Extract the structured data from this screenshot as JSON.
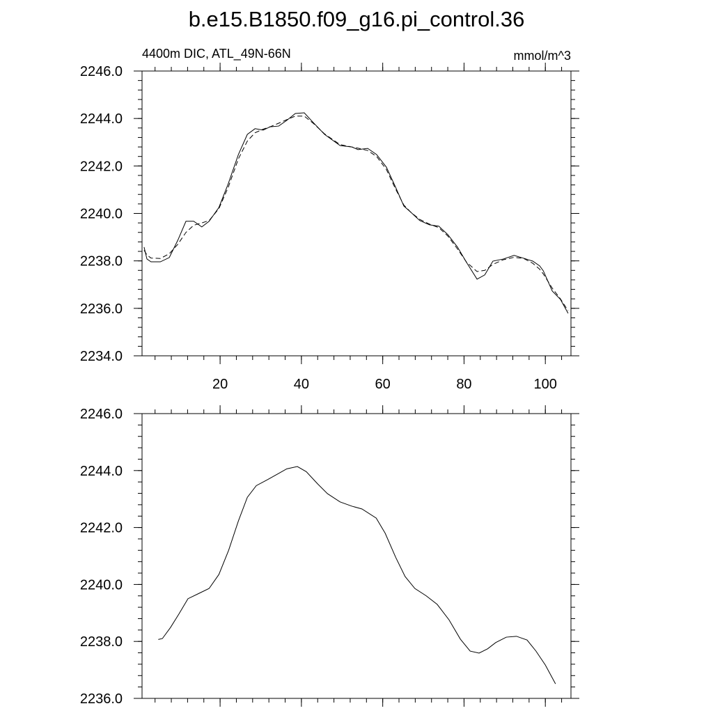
{
  "chart_data": [
    {
      "type": "line",
      "title": "b.e15.B1850.f09_g16.pi_control.36",
      "subtitle": "4400m DIC, ATL_49N-66N",
      "units": "mmol/m^3",
      "x": [
        1.3,
        2,
        3,
        5.3,
        7.5,
        9.6,
        11.6,
        13.5,
        15.5,
        17.3,
        19.7,
        22,
        24.5,
        26.7,
        28.6,
        30.6,
        32.3,
        34.4,
        36.4,
        38.5,
        40.7,
        42.9,
        45.7,
        49.5,
        52.4,
        53.9,
        56.3,
        58.5,
        60.9,
        63.1,
        65.2,
        66.9,
        69.1,
        71.5,
        73.8,
        76,
        78.4,
        80.6,
        83.2,
        85.1,
        87.1,
        89.7,
        92.3,
        94.7,
        96.9,
        98.6,
        99.5,
        101.7,
        103.7,
        105.6
      ],
      "series": [
        {
          "color": "#000000",
          "style": "solid",
          "values": [
            2238.58,
            2238.08,
            2237.96,
            2237.96,
            2238.14,
            2238.87,
            2239.67,
            2239.67,
            2239.43,
            2239.67,
            2240.25,
            2241.25,
            2242.48,
            2243.33,
            2243.57,
            2243.51,
            2243.65,
            2243.68,
            2243.92,
            2244.21,
            2244.24,
            2243.83,
            2243.33,
            2242.86,
            2242.8,
            2242.69,
            2242.74,
            2242.48,
            2241.95,
            2241.13,
            2240.31,
            2240.05,
            2239.7,
            2239.52,
            2239.46,
            2239.11,
            2238.58,
            2237.94,
            2237.23,
            2237.41,
            2237.99,
            2238.08,
            2238.23,
            2238.11,
            2237.99,
            2237.79,
            2237.58,
            2236.73,
            2236.38,
            2235.79
          ]
        },
        {
          "color": "#000000",
          "style": "dashed",
          "values": [
            2238.45,
            2238.25,
            2238.12,
            2238.1,
            2238.3,
            2238.7,
            2239.2,
            2239.5,
            2239.6,
            2239.7,
            2240.2,
            2241.1,
            2242.3,
            2243.05,
            2243.4,
            2243.55,
            2243.65,
            2243.8,
            2243.95,
            2244.1,
            2244.1,
            2243.8,
            2243.35,
            2242.9,
            2242.8,
            2242.75,
            2242.65,
            2242.4,
            2241.85,
            2241.05,
            2240.35,
            2240.05,
            2239.75,
            2239.55,
            2239.4,
            2239.05,
            2238.5,
            2237.95,
            2237.55,
            2237.6,
            2237.85,
            2238.05,
            2238.15,
            2238.1,
            2237.9,
            2237.65,
            2237.45,
            2236.85,
            2236.4,
            2235.9
          ]
        }
      ],
      "xlim": [
        0.8,
        106.3
      ],
      "xticks": [
        20,
        40,
        60,
        80,
        100
      ],
      "xtick_labels": true,
      "ylim": [
        2234,
        2246
      ],
      "yticks": [
        {
          "value": 2234,
          "label": "2234.0"
        },
        {
          "value": 2236,
          "label": "2236.0"
        },
        {
          "value": 2238,
          "label": "2238.0"
        },
        {
          "value": 2240,
          "label": "2240.0"
        },
        {
          "value": 2242,
          "label": "2242.0"
        },
        {
          "value": 2244,
          "label": "2244.0"
        },
        {
          "value": 2246,
          "label": "2246.0"
        }
      ]
    },
    {
      "type": "line",
      "x": [
        4.8,
        5.8,
        7.8,
        9.9,
        12.1,
        14.7,
        17.3,
        19.7,
        22.1,
        24.5,
        26.7,
        28.9,
        31.8,
        34.4,
        36.4,
        39.0,
        41.2,
        44.0,
        46.4,
        49.5,
        52.4,
        54.9,
        58.4,
        60.6,
        63.2,
        65.5,
        67.9,
        70.7,
        73.4,
        76.3,
        79.1,
        81.5,
        83.7,
        85.8,
        87.8,
        90.4,
        92.9,
        95.5,
        97.7,
        100,
        102.5
      ],
      "series": [
        {
          "color": "#000000",
          "style": "solid",
          "values": [
            2238.07,
            2238.1,
            2238.49,
            2238.97,
            2239.5,
            2239.68,
            2239.86,
            2240.35,
            2241.2,
            2242.23,
            2243.06,
            2243.47,
            2243.69,
            2243.9,
            2244.06,
            2244.14,
            2243.96,
            2243.53,
            2243.19,
            2242.9,
            2242.75,
            2242.65,
            2242.33,
            2241.8,
            2240.95,
            2240.28,
            2239.86,
            2239.6,
            2239.3,
            2238.76,
            2238.08,
            2237.66,
            2237.59,
            2237.74,
            2237.96,
            2238.15,
            2238.18,
            2238.05,
            2237.66,
            2237.17,
            2236.51
          ]
        }
      ],
      "xlim": [
        0.8,
        106.3
      ],
      "xticks": [
        20,
        40,
        60,
        80,
        100
      ],
      "xtick_labels": false,
      "ylim": [
        2236,
        2246
      ],
      "yticks": [
        {
          "value": 2236,
          "label": "2236.0"
        },
        {
          "value": 2238,
          "label": "2238.0"
        },
        {
          "value": 2240,
          "label": "2240.0"
        },
        {
          "value": 2242,
          "label": "2242.0"
        },
        {
          "value": 2244,
          "label": "2244.0"
        },
        {
          "value": 2246,
          "label": "2246.0"
        }
      ]
    }
  ]
}
